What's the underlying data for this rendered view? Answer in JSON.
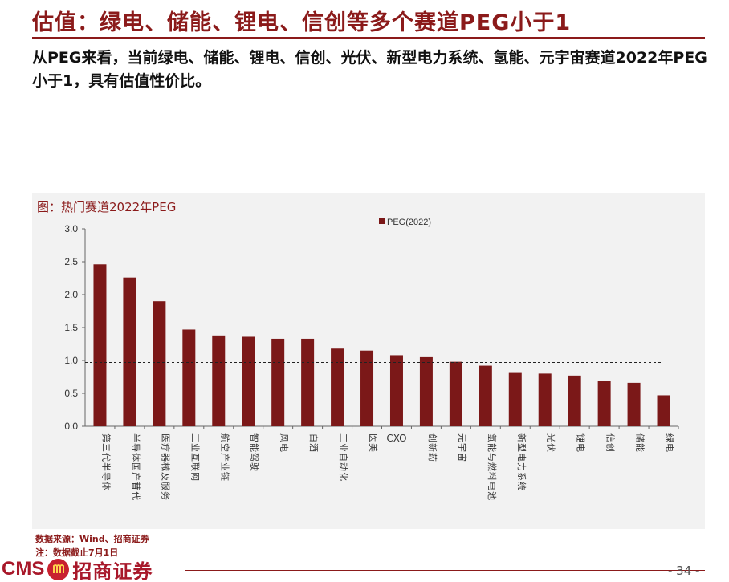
{
  "slide": {
    "title": "估值：绿电、储能、锂电、信创等多个赛道PEG小于1",
    "summary": "从PEG来看，当前绿电、储能、锂电、信创、光伏、新型电力系统、氢能、元宇宙赛道2022年PEG小于1，具有估值性价比。"
  },
  "figure_caption": "图：热门赛道2022年PEG",
  "chart_data": {
    "type": "bar",
    "categories": [
      "第三代半导体",
      "半导体国产替代",
      "医疗器械及服务",
      "工业互联网",
      "航空产业链",
      "智能驾驶",
      "风电",
      "白酒",
      "工业自动化",
      "医美",
      "CXO",
      "创新药",
      "元宇宙",
      "氢能与燃料电池",
      "新型电力系统",
      "光伏",
      "锂电",
      "信创",
      "储能",
      "绿电"
    ],
    "series": [
      {
        "name": "PEG(2022)",
        "values": [
          2.46,
          2.26,
          1.9,
          1.47,
          1.38,
          1.36,
          1.33,
          1.33,
          1.18,
          1.15,
          1.08,
          1.05,
          0.98,
          0.92,
          0.81,
          0.8,
          0.77,
          0.69,
          0.66,
          0.47
        ],
        "color": "#7B1818"
      }
    ],
    "y_ticks": [
      "0.0",
      "0.5",
      "1.0",
      "1.5",
      "2.0",
      "2.5",
      "3.0"
    ],
    "ylim": [
      0,
      3.0
    ],
    "reference_line": 0.97,
    "legend_position": "top-center",
    "grid": false
  },
  "footnotes": {
    "source": "数据来源：Wind、招商证券",
    "note": "注：数据截止7月1日"
  },
  "footer": {
    "logo_latin": "CMS",
    "logo_chinese": "招商证券",
    "page_number": "- 34 -"
  }
}
